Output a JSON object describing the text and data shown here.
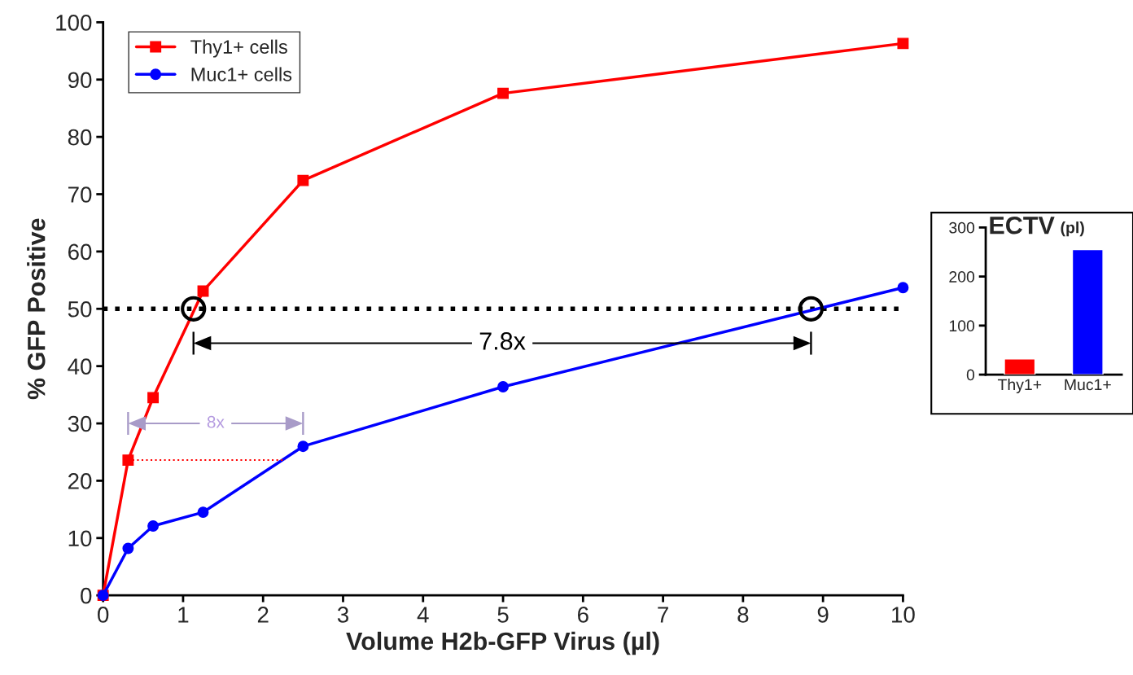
{
  "chart_data": [
    {
      "type": "line",
      "xlabel": "Volume H2b-GFP Virus (µl)",
      "ylabel": "% GFP Positive",
      "series": [
        {
          "name": "Thy1+ cells",
          "color": "#ff0000",
          "marker": "square",
          "x": [
            0,
            0.3125,
            0.625,
            1.25,
            2.5,
            5,
            10
          ],
          "values": [
            0,
            23.6,
            34.5,
            53.1,
            72.4,
            87.6,
            96.3
          ]
        },
        {
          "name": "Muc1+ cells",
          "color": "#0000ff",
          "marker": "circle",
          "x": [
            0,
            0.3125,
            0.625,
            1.25,
            2.5,
            5,
            10
          ],
          "values": [
            0,
            8.2,
            12.1,
            14.5,
            26,
            36.4,
            53.7
          ]
        },
        {
          "type": "line",
          "color": "#ff0000",
          "line_style": "dotted",
          "marker": "none",
          "x": [
            0.3125,
            2.28
          ],
          "values": [
            23.6,
            23.6
          ]
        },
        {
          "type": "scatter",
          "color": "#000000",
          "marker": "circle",
          "x": [
            1.13,
            8.85
          ],
          "values": [
            50,
            50
          ]
        }
      ],
      "ref_lines": [
        {
          "axis": "y",
          "value": 50,
          "color": "#000000",
          "line_style": "dotted"
        }
      ],
      "annotations": [
        "7.8x",
        "8x"
      ],
      "xlim": [
        0,
        10
      ],
      "xticks": [
        0,
        1,
        2,
        3,
        4,
        5,
        6,
        7,
        8,
        9,
        10
      ],
      "ylim": [
        0,
        100
      ],
      "yticks": [
        0,
        10,
        20,
        30,
        40,
        50,
        60,
        70,
        80,
        90,
        100
      ],
      "legend": "top left",
      "grid": false
    },
    {
      "type": "bar",
      "title": "ECTV",
      "subtitle": "(pl)",
      "categories": [
        "Thy1+",
        "Muc1+"
      ],
      "values": [
        32,
        255
      ],
      "colors": [
        "#ff0000",
        "#0000ff"
      ],
      "ylim": [
        0,
        300
      ],
      "yticks": [
        0,
        100,
        200,
        300
      ],
      "grid": false
    }
  ]
}
